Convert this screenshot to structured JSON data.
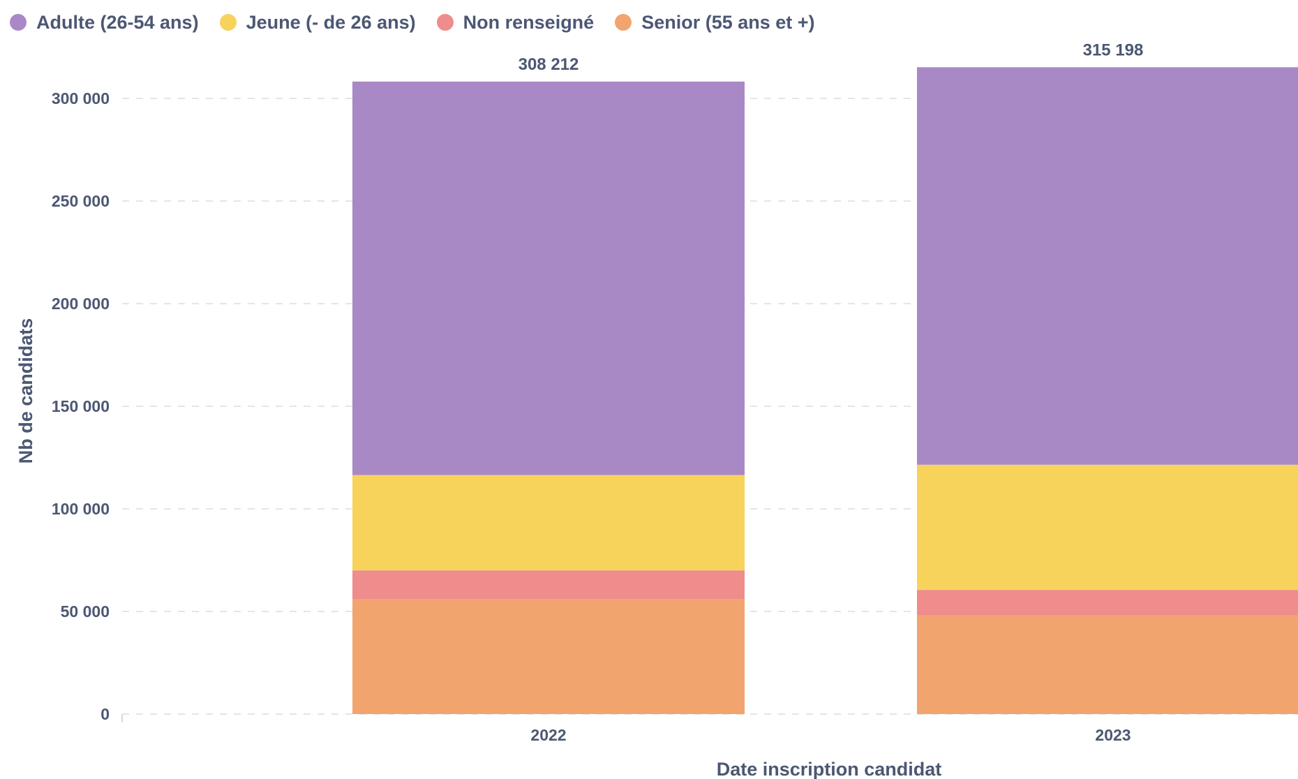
{
  "chart_data": {
    "type": "bar",
    "stacked": true,
    "categories": [
      "2022",
      "2023"
    ],
    "series": [
      {
        "name": "Senior (55 ans et +)",
        "color": "#f2a46f",
        "values": [
          56000,
          48000
        ]
      },
      {
        "name": "Non renseigné",
        "color": "#ef8c8c",
        "values": [
          14000,
          12500
        ]
      },
      {
        "name": "Jeune (- de 26 ans)",
        "color": "#f7d35c",
        "values": [
          46500,
          61000
        ]
      },
      {
        "name": "Adulte (26-54 ans)",
        "color": "#a989c5",
        "values": [
          191712,
          193698
        ]
      }
    ],
    "legend_order": [
      {
        "name": "Adulte (26-54 ans)",
        "color": "#a989c5"
      },
      {
        "name": "Jeune (- de 26 ans)",
        "color": "#f7d35c"
      },
      {
        "name": "Non renseigné",
        "color": "#ef8c8c"
      },
      {
        "name": "Senior (55 ans et +)",
        "color": "#f2a46f"
      }
    ],
    "totals": [
      308212,
      315198
    ],
    "total_labels": [
      "308 212",
      "315 198"
    ],
    "yticks": [
      0,
      50000,
      100000,
      150000,
      200000,
      250000,
      300000
    ],
    "ytick_labels": [
      "0",
      "50 000",
      "100 000",
      "150 000",
      "200 000",
      "250 000",
      "300 000"
    ],
    "ylim": [
      0,
      300000
    ],
    "xlabel": "Date inscription candidat",
    "ylabel": "Nb de candidats",
    "grid": true,
    "legend_position": "top-left"
  }
}
